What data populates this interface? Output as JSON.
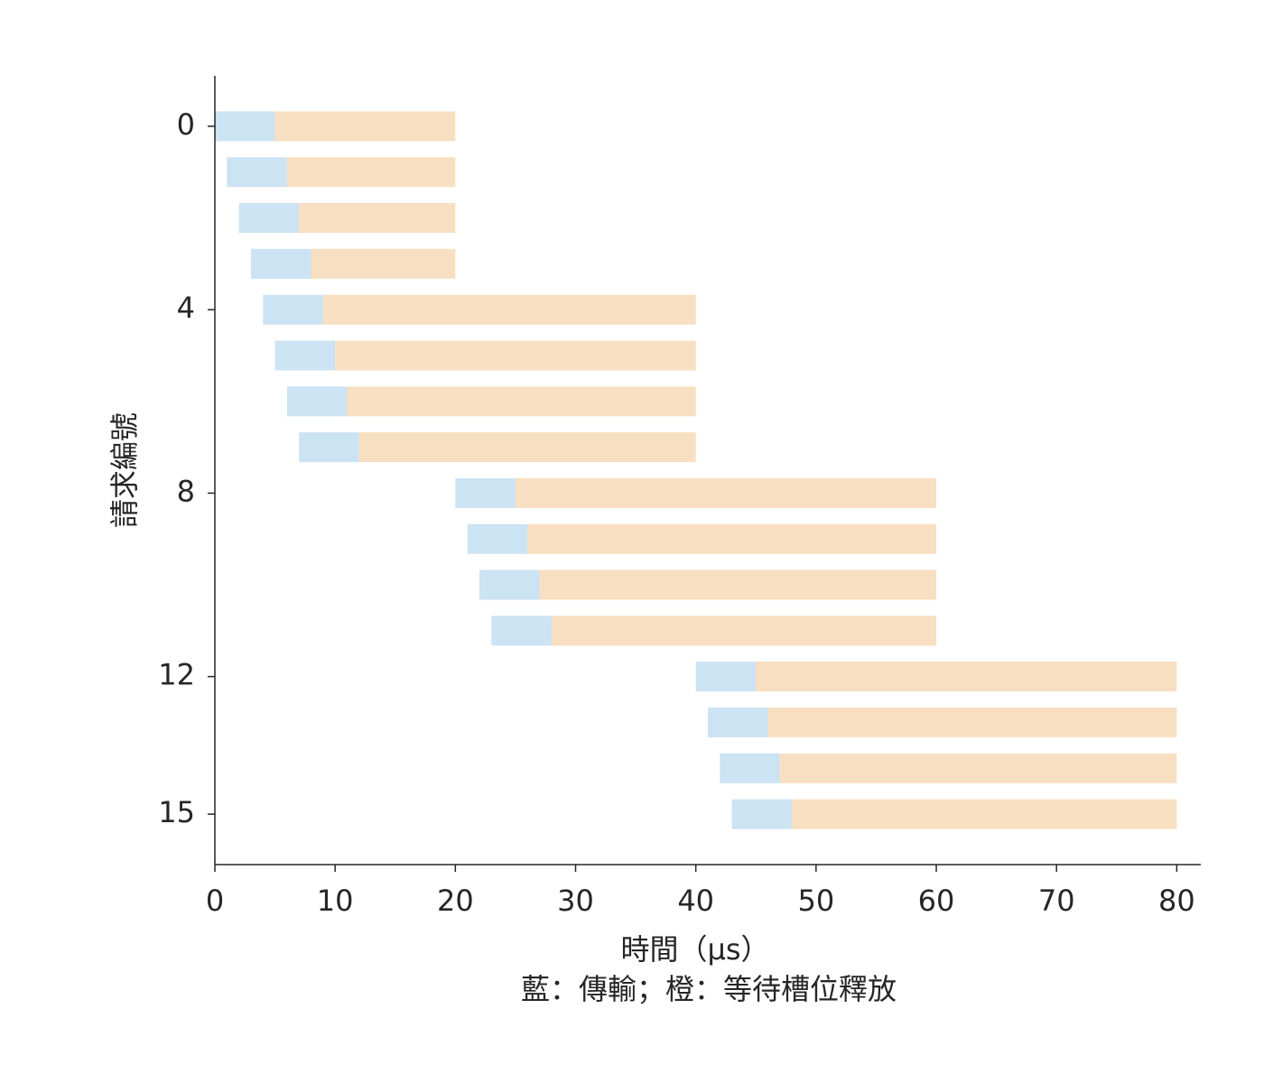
{
  "chart_data": {
    "type": "broken_barh",
    "xlabel": "時間（μs）",
    "ylabel": "請求編號",
    "caption": "藍：傳輸；橙：等待槽位釋放",
    "y": [
      0,
      1,
      2,
      3,
      4,
      5,
      6,
      7,
      8,
      9,
      10,
      11,
      12,
      13,
      14,
      15
    ],
    "starts": [
      0,
      1,
      2,
      3,
      4,
      5,
      6,
      7,
      20,
      21,
      22,
      23,
      40,
      41,
      42,
      43
    ],
    "series": [
      {
        "color": "#cce3f3",
        "values": [
          5,
          5,
          5,
          5,
          5,
          5,
          5,
          5,
          5,
          5,
          5,
          5,
          5,
          5,
          5,
          5
        ]
      },
      {
        "color": "#f8dfc1",
        "values": [
          15,
          14,
          13,
          12,
          31,
          30,
          29,
          28,
          35,
          34,
          33,
          32,
          35,
          34,
          33,
          32
        ]
      }
    ],
    "xlim": [
      0,
      82
    ],
    "xticks": [
      0,
      10,
      20,
      30,
      40,
      50,
      60,
      70,
      80
    ],
    "ylim": [
      16.1,
      -1.1
    ],
    "yticks": [
      0,
      4,
      8,
      12,
      15
    ]
  }
}
